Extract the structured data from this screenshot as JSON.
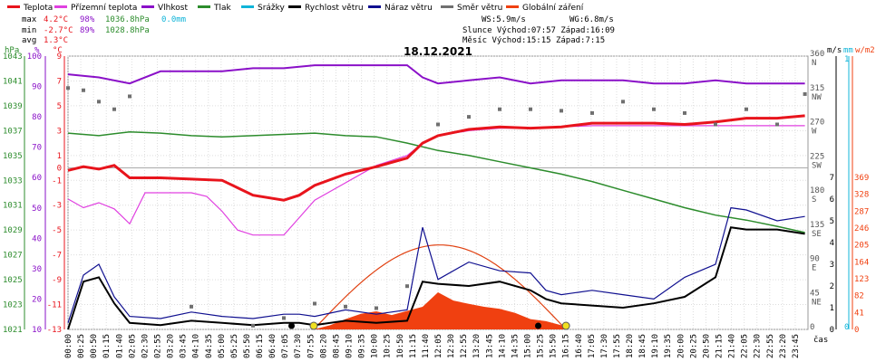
{
  "chart_data": {
    "type": "line",
    "title": "18.12.2021",
    "legend": [
      {
        "label": "Teplota",
        "color": "#e8141c"
      },
      {
        "label": "Přízemní teplota",
        "color": "#e040e0"
      },
      {
        "label": "Vlhkost",
        "color": "#8a10c8"
      },
      {
        "label": "Tlak",
        "color": "#2c8c2c"
      },
      {
        "label": "Srážky",
        "color": "#10b4d8"
      },
      {
        "label": "Rychlost větru",
        "color": "#000000"
      },
      {
        "label": "Náraz větru",
        "color": "#101090"
      },
      {
        "label": "Směr větru",
        "color": "#707070"
      },
      {
        "label": "Globální záření",
        "color": "#f04010"
      }
    ],
    "stats": {
      "max_label": "max",
      "max_temp": "4.2°C",
      "max_hum": "98%",
      "max_press": "1036.8hPa",
      "max_rain": "0.0mm",
      "min_label": "min",
      "min_temp": "-2.7°C",
      "min_hum": "89%",
      "min_press": "1028.8hPa",
      "avg_label": "avg",
      "avg_temp": "1.3°C"
    },
    "info": {
      "ws": "WS:5.9m/s",
      "wg": "WG:6.8m/s",
      "sun": "Slunce Východ:07:57  Západ:16:09",
      "moon": "Měsíc  Východ:15:15  Západ:7:15"
    },
    "axes": {
      "hpa_unit": "hPa",
      "pct_unit": "%",
      "c_unit": "°C",
      "dir_unit": "m/s",
      "rain_unit": "mm",
      "wm_unit": "w/m2",
      "x_unit": "čas",
      "hpa_ticks": [
        "1043",
        "1041",
        "1039",
        "1037",
        "1035",
        "1033",
        "1031",
        "1029",
        "1027",
        "1025",
        "1023",
        "1021"
      ],
      "pct_ticks": [
        "100",
        "90",
        "80",
        "70",
        "60",
        "50",
        "40",
        "30",
        "20",
        "10"
      ],
      "c_ticks": [
        "9",
        "7",
        "5",
        "3",
        "1",
        "0",
        "-1",
        "-3",
        "-5",
        "-7",
        "-9",
        "-11",
        "-13"
      ],
      "dir_ticks": [
        "360",
        "315",
        "270",
        "225",
        "180",
        "135",
        "90",
        "45",
        "0"
      ],
      "dir_labels": [
        "N",
        "NW",
        "W",
        "SW",
        "S",
        "SE",
        "E",
        "NE"
      ],
      "ms_ticks": [
        "7",
        "6",
        "5",
        "4",
        "3",
        "2",
        "1",
        "0"
      ],
      "rain_ticks": [
        "1",
        "0"
      ],
      "wm_ticks": [
        "369",
        "328",
        "287",
        "246",
        "205",
        "164",
        "123",
        "82",
        "41",
        "0"
      ],
      "x_ticks": [
        "00:00",
        "00:25",
        "00:50",
        "01:15",
        "01:40",
        "02:05",
        "02:30",
        "02:55",
        "03:20",
        "03:45",
        "04:10",
        "04:35",
        "05:00",
        "05:25",
        "05:50",
        "06:15",
        "06:40",
        "07:05",
        "07:30",
        "07:55",
        "08:20",
        "08:45",
        "09:10",
        "09:35",
        "10:00",
        "10:25",
        "10:50",
        "11:15",
        "11:40",
        "12:05",
        "12:30",
        "12:55",
        "13:20",
        "13:45",
        "14:10",
        "14:35",
        "15:00",
        "15:25",
        "15:50",
        "16:15",
        "16:40",
        "17:05",
        "17:30",
        "17:55",
        "18:20",
        "18:45",
        "19:10",
        "19:35",
        "20:00",
        "20:25",
        "20:50",
        "21:15",
        "21:40",
        "22:05",
        "22:30",
        "22:55",
        "23:20",
        "23:45"
      ]
    },
    "series": [
      {
        "name": "Teplota",
        "unit": "°C",
        "x_hours": [
          0,
          0.5,
          1,
          1.5,
          2,
          3,
          4,
          5,
          5.5,
          6,
          7,
          7.5,
          8,
          9,
          10,
          11,
          11.5,
          12,
          13,
          14,
          15,
          16,
          17,
          18,
          19,
          20,
          21,
          22,
          23,
          23.9
        ],
        "values": [
          -0.2,
          0.1,
          -0.1,
          0.2,
          -0.8,
          -0.8,
          -0.9,
          -1.0,
          -1.6,
          -2.2,
          -2.6,
          -2.2,
          -1.4,
          -0.5,
          0.1,
          0.8,
          2.0,
          2.6,
          3.1,
          3.3,
          3.2,
          3.3,
          3.6,
          3.6,
          3.6,
          3.5,
          3.7,
          4.0,
          4.0,
          4.2
        ]
      },
      {
        "name": "Přízemní teplota",
        "unit": "°C",
        "x_hours": [
          0,
          0.5,
          1,
          1.5,
          2,
          2.5,
          3,
          4,
          4.5,
          5,
          5.5,
          6,
          7,
          7.5,
          8,
          9,
          10,
          11,
          11.5,
          12,
          13,
          14,
          15,
          16,
          17,
          18,
          19,
          20,
          21,
          22,
          23,
          23.9
        ],
        "values": [
          -2.5,
          -3.2,
          -2.8,
          -3.3,
          -4.5,
          -2.0,
          -2.0,
          -2.0,
          -2.3,
          -3.5,
          -5.0,
          -5.4,
          -5.4,
          -4.0,
          -2.6,
          -1.2,
          0.2,
          1.0,
          2.0,
          2.6,
          3.0,
          3.2,
          3.2,
          3.3,
          3.4,
          3.4,
          3.4,
          3.4,
          3.4,
          3.4,
          3.4,
          3.4
        ]
      },
      {
        "name": "Vlhkost",
        "unit": "%",
        "x_hours": [
          0,
          1,
          2,
          3,
          4,
          5,
          6,
          7,
          8,
          9,
          10,
          11,
          11.5,
          12,
          13,
          14,
          15,
          16,
          17,
          18,
          19,
          20,
          21,
          22,
          23,
          23.9
        ],
        "values": [
          94,
          93,
          91,
          95,
          95,
          95,
          96,
          96,
          97,
          97,
          97,
          97,
          93,
          91,
          92,
          93,
          91,
          92,
          92,
          92,
          91,
          91,
          92,
          91,
          91,
          91
        ]
      },
      {
        "name": "Tlak",
        "unit": "hPa",
        "x_hours": [
          0,
          1,
          2,
          3,
          4,
          5,
          6,
          7,
          8,
          9,
          10,
          11,
          12,
          13,
          14,
          15,
          16,
          17,
          18,
          19,
          20,
          21,
          22,
          23,
          23.9
        ],
        "values": [
          1036.8,
          1036.6,
          1036.9,
          1036.8,
          1036.6,
          1036.5,
          1036.6,
          1036.7,
          1036.8,
          1036.6,
          1036.5,
          1036.0,
          1035.4,
          1035.0,
          1034.5,
          1034.0,
          1033.5,
          1032.9,
          1032.2,
          1031.5,
          1030.8,
          1030.2,
          1029.8,
          1029.3,
          1028.8
        ]
      },
      {
        "name": "Rychlost větru",
        "unit": "m/s",
        "x_hours": [
          0,
          0.5,
          1,
          1.5,
          2,
          3,
          4,
          5,
          6,
          7,
          7.5,
          8,
          9,
          10,
          11,
          11.5,
          12,
          13,
          14,
          15,
          15.5,
          16,
          17,
          18,
          19,
          20,
          21,
          21.5,
          22,
          23,
          23.9
        ],
        "values": [
          0,
          2.2,
          2.4,
          1.2,
          0.3,
          0.2,
          0.4,
          0.3,
          0.2,
          0.3,
          0.3,
          0.2,
          0.4,
          0.3,
          0.4,
          2.2,
          2.1,
          2.0,
          2.2,
          1.8,
          1.4,
          1.2,
          1.1,
          1.0,
          1.2,
          1.5,
          2.4,
          4.7,
          4.6,
          4.6,
          4.4
        ]
      },
      {
        "name": "Náraz větru",
        "unit": "m/s",
        "x_hours": [
          0,
          0.5,
          1,
          1.5,
          2,
          3,
          4,
          5,
          6,
          7,
          7.5,
          8,
          9,
          10,
          11,
          11.5,
          12,
          13,
          14,
          15,
          15.5,
          16,
          17,
          18,
          19,
          20,
          21,
          21.5,
          22,
          23,
          23.9
        ],
        "values": [
          0.3,
          2.5,
          3.0,
          1.5,
          0.6,
          0.5,
          0.8,
          0.6,
          0.5,
          0.7,
          0.7,
          0.6,
          0.9,
          0.7,
          0.9,
          4.7,
          2.3,
          3.1,
          2.7,
          2.6,
          1.8,
          1.6,
          1.8,
          1.6,
          1.4,
          2.4,
          3.0,
          5.6,
          5.5,
          5.0,
          5.2
        ]
      },
      {
        "name": "Směr větru",
        "unit": "°",
        "x_hours": [
          0,
          0.5,
          1,
          1.5,
          2,
          4,
          6,
          7,
          8,
          9,
          10,
          11,
          12,
          13,
          14,
          15,
          16,
          17,
          18,
          19,
          20,
          21,
          22,
          23,
          23.9
        ],
        "values": [
          318,
          315,
          300,
          290,
          307,
          30,
          5,
          15,
          34,
          30,
          28,
          57,
          270,
          280,
          290,
          290,
          288,
          285,
          300,
          290,
          285,
          270,
          290,
          270,
          310
        ]
      },
      {
        "name": "Globální záření",
        "unit": "w/m2",
        "x_hours": [
          7.97,
          8.5,
          9,
          9.5,
          10,
          10.5,
          11,
          11.5,
          12,
          12.5,
          13,
          13.5,
          14,
          14.5,
          15,
          15.5,
          16,
          16.15
        ],
        "values": [
          0,
          10,
          25,
          38,
          44,
          35,
          45,
          55,
          90,
          70,
          62,
          55,
          50,
          40,
          25,
          20,
          10,
          0
        ]
      }
    ]
  }
}
